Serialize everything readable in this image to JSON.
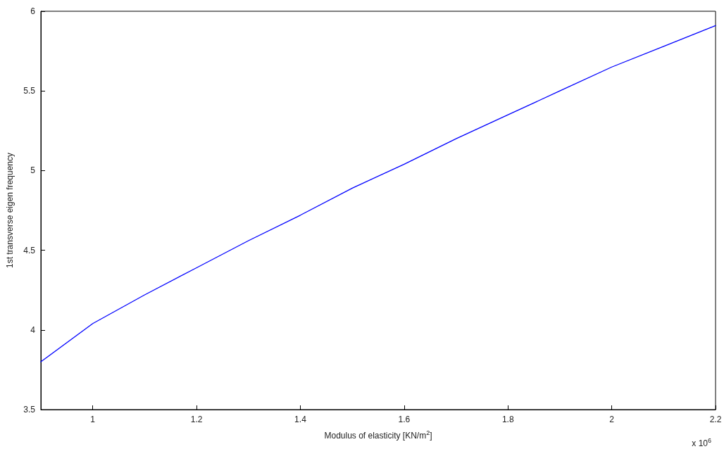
{
  "chart_data": {
    "type": "line",
    "xlabel": "Modulus of elasticity [KN/m$^{2}$]",
    "ylabel": "1st transverse eigen frequency",
    "annotations": [
      "x 10$^{6}$"
    ],
    "x": [
      0.9,
      1.0,
      1.1,
      1.2,
      1.3,
      1.4,
      1.5,
      1.6,
      1.7,
      1.8,
      1.9,
      2.0,
      2.1,
      2.2
    ],
    "series": [
      {
        "color": "#0000ff",
        "values": [
          3.8,
          4.04,
          4.22,
          4.39,
          4.56,
          4.72,
          4.89,
          5.04,
          5.2,
          5.35,
          5.5,
          5.65,
          5.78,
          5.91
        ]
      }
    ],
    "xlim": [
      0.9,
      2.2
    ],
    "xticks": [
      1,
      1.2,
      1.4,
      1.6,
      1.8,
      2,
      2.2
    ],
    "ylim": [
      3.5,
      6
    ],
    "yticks": [
      3.5,
      4,
      4.5,
      5,
      5.5,
      6
    ],
    "grid": false,
    "marker": "none",
    "line_style": "solid"
  }
}
